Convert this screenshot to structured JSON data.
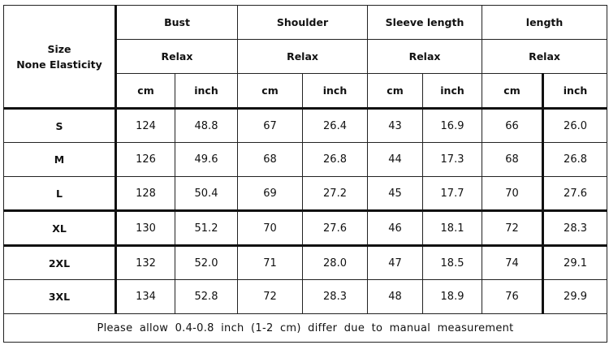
{
  "header": {
    "size_label": "Size",
    "elasticity_label": "None Elasticity",
    "groups": [
      {
        "label": "Bust",
        "fit": "Relax"
      },
      {
        "label": "Shoulder",
        "fit": "Relax"
      },
      {
        "label": "Sleeve length",
        "fit": "Relax"
      },
      {
        "label": "length",
        "fit": "Relax"
      }
    ],
    "units": [
      "cm",
      "inch"
    ]
  },
  "rows": [
    {
      "size": "S",
      "values": [
        "124",
        "48.8",
        "67",
        "26.4",
        "43",
        "16.9",
        "66",
        "26.0"
      ]
    },
    {
      "size": "M",
      "values": [
        "126",
        "49.6",
        "68",
        "26.8",
        "44",
        "17.3",
        "68",
        "26.8"
      ]
    },
    {
      "size": "L",
      "values": [
        "128",
        "50.4",
        "69",
        "27.2",
        "45",
        "17.7",
        "70",
        "27.6"
      ]
    },
    {
      "size": "XL",
      "values": [
        "130",
        "51.2",
        "70",
        "27.6",
        "46",
        "18.1",
        "72",
        "28.3"
      ]
    },
    {
      "size": "2XL",
      "values": [
        "132",
        "52.0",
        "71",
        "28.0",
        "47",
        "18.5",
        "74",
        "29.1"
      ]
    },
    {
      "size": "3XL",
      "values": [
        "134",
        "52.8",
        "72",
        "28.3",
        "48",
        "18.9",
        "76",
        "29.9"
      ]
    }
  ],
  "note": "Please allow 0.4-0.8 inch (1-2 cm) differ due to manual measurement"
}
